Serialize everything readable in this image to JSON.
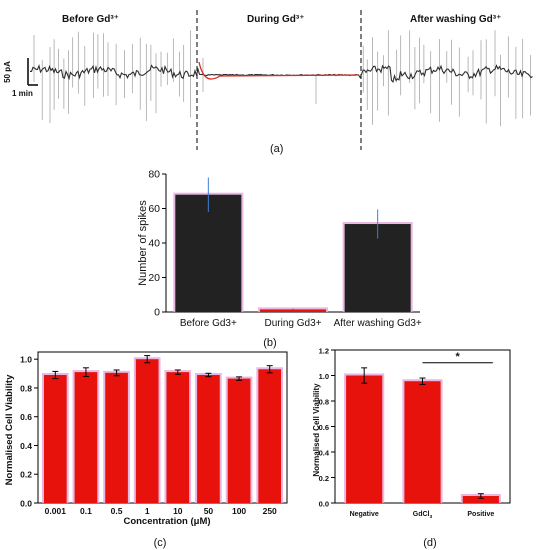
{
  "colors": {
    "dark_bar": "#222222",
    "red_bar": "#e8120c",
    "bar_glow": "#e6a9dd",
    "error_blue": "#3d7fd8",
    "trace": "#2e2e2e",
    "trace_red": "#d42a20"
  },
  "panel_a": {
    "label": "(a)",
    "segments": [
      "Before Gd³⁺",
      "During Gd³⁺",
      "After washing Gd³⁺"
    ],
    "scale_y": "50 pA",
    "scale_x": "1 min"
  },
  "chart_data": [
    {
      "panel": "(b)",
      "type": "bar",
      "categories": [
        "Before Gd3+",
        "During Gd3+",
        "After washing Gd3+"
      ],
      "values": [
        68,
        1.5,
        51
      ],
      "errors": [
        10,
        0.5,
        8.5
      ],
      "ylabel": "Number of spikes",
      "ylim": [
        0,
        80
      ],
      "yticks": [
        "0",
        "20",
        "40",
        "60",
        "80"
      ]
    },
    {
      "panel": "(c)",
      "type": "bar",
      "categories": [
        "0.001",
        "0.1",
        "0.5",
        "1",
        "10",
        "50",
        "100",
        "250"
      ],
      "values": [
        0.89,
        0.91,
        0.905,
        1.0,
        0.91,
        0.89,
        0.865,
        0.93
      ],
      "errors": [
        0.025,
        0.03,
        0.02,
        0.025,
        0.015,
        0.012,
        0.012,
        0.025
      ],
      "ylabel": "Normalised Cell Viability",
      "xlabel": "Concentration (μM)",
      "ylim": [
        0,
        1.05
      ],
      "yticks": [
        "0.0",
        "0.2",
        "0.4",
        "0.6",
        "0.8",
        "1.0"
      ]
    },
    {
      "panel": "(d)",
      "type": "bar",
      "categories": [
        "Negative",
        "GdCl",
        "Positive"
      ],
      "category_subscripts": [
        "",
        "3",
        ""
      ],
      "values": [
        1.0,
        0.955,
        0.055
      ],
      "errors": [
        0.06,
        0.025,
        0.018
      ],
      "ylabel": "Normalised Cell Viability",
      "ylim": [
        0,
        1.2
      ],
      "yticks": [
        "0.0",
        "0.2",
        "0.4",
        "0.6",
        "0.8",
        "1.0",
        "1.2"
      ],
      "annotation": "*"
    }
  ]
}
